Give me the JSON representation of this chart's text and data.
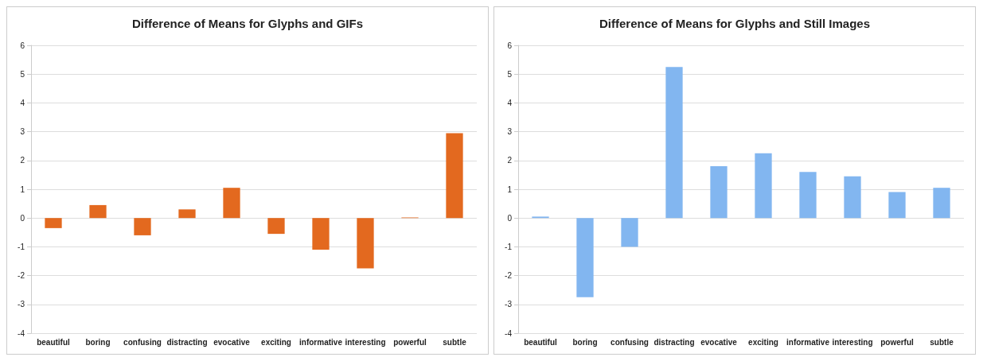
{
  "chart_data": [
    {
      "type": "bar",
      "title": "Difference of Means for Glyphs and GIFs",
      "categories": [
        "beautiful",
        "boring",
        "confusing",
        "distracting",
        "evocative",
        "exciting",
        "informative",
        "interesting",
        "powerful",
        "subtle"
      ],
      "values": [
        -0.35,
        0.45,
        -0.6,
        0.3,
        1.05,
        -0.55,
        -1.1,
        -1.75,
        0.02,
        2.95
      ],
      "color": "#e3691f",
      "ylim": [
        -4,
        6
      ],
      "yticks": [
        -4,
        -3,
        -2,
        -1,
        0,
        1,
        2,
        3,
        4,
        5,
        6
      ],
      "grid": "y"
    },
    {
      "type": "bar",
      "title": "Difference of Means for Glyphs and Still Images",
      "categories": [
        "beautiful",
        "boring",
        "confusing",
        "distracting",
        "evocative",
        "exciting",
        "informative",
        "interesting",
        "powerful",
        "subtle"
      ],
      "values": [
        0.05,
        -2.75,
        -1.0,
        5.25,
        1.8,
        2.25,
        1.6,
        1.45,
        0.9,
        1.05
      ],
      "color": "#82b6f0",
      "ylim": [
        -4,
        6
      ],
      "yticks": [
        -4,
        -3,
        -2,
        -1,
        0,
        1,
        2,
        3,
        4,
        5,
        6
      ],
      "grid": "y"
    }
  ]
}
